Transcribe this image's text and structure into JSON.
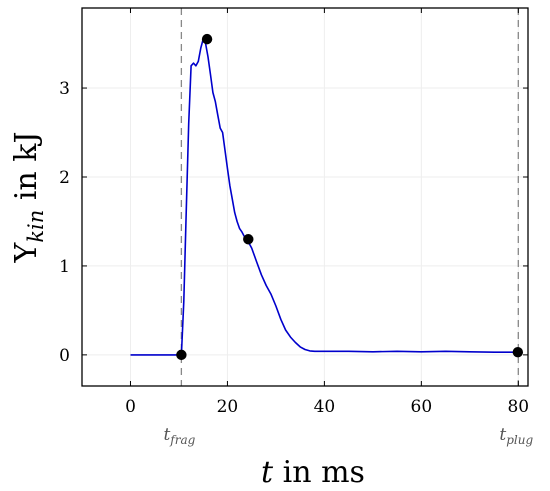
{
  "chart_data": {
    "type": "line",
    "xlabel": {
      "var": "t",
      "rest": " in ms"
    },
    "ylabel": {
      "base": "Y",
      "sub": "kin",
      "rest": " in kJ"
    },
    "xlim": [
      -10,
      82
    ],
    "ylim": [
      -0.35,
      3.9
    ],
    "xticks": [
      0,
      20,
      40,
      60,
      80
    ],
    "yticks": [
      0,
      1,
      2,
      3
    ],
    "grid": true,
    "color": "#0000cc",
    "vlines": [
      {
        "x": 10.5,
        "label_base": "t",
        "label_sub": "frag"
      },
      {
        "x": 80,
        "label_base": "t",
        "label_sub": "plug"
      }
    ],
    "series": [
      {
        "x": [
          0,
          5,
          10,
          10.5,
          11,
          11.5,
          12,
          12.5,
          13,
          13.5,
          14,
          14.5,
          15,
          15.5,
          16,
          16.5,
          17,
          17.5,
          18,
          18.5,
          19,
          19.5,
          20,
          20.5,
          21,
          21.5,
          22,
          22.5,
          23,
          23.5,
          24,
          24.5,
          25,
          26,
          27,
          28,
          29,
          30,
          31,
          32,
          33,
          34,
          35,
          36,
          37,
          38,
          40,
          45,
          50,
          55,
          60,
          65,
          70,
          75,
          80
        ],
        "y": [
          0,
          0,
          0,
          0,
          0.6,
          1.6,
          2.6,
          3.25,
          3.28,
          3.25,
          3.3,
          3.45,
          3.55,
          3.5,
          3.35,
          3.15,
          2.95,
          2.85,
          2.7,
          2.55,
          2.5,
          2.3,
          2.1,
          1.9,
          1.75,
          1.6,
          1.5,
          1.42,
          1.38,
          1.33,
          1.3,
          1.25,
          1.2,
          1.05,
          0.9,
          0.78,
          0.68,
          0.55,
          0.4,
          0.28,
          0.2,
          0.14,
          0.09,
          0.06,
          0.045,
          0.04,
          0.04,
          0.04,
          0.035,
          0.04,
          0.035,
          0.04,
          0.035,
          0.03,
          0.03
        ]
      }
    ],
    "points": [
      {
        "x": 10.5,
        "y": 0
      },
      {
        "x": 15.8,
        "y": 3.55
      },
      {
        "x": 24.3,
        "y": 1.3
      },
      {
        "x": 79.9,
        "y": 0.03
      }
    ]
  }
}
